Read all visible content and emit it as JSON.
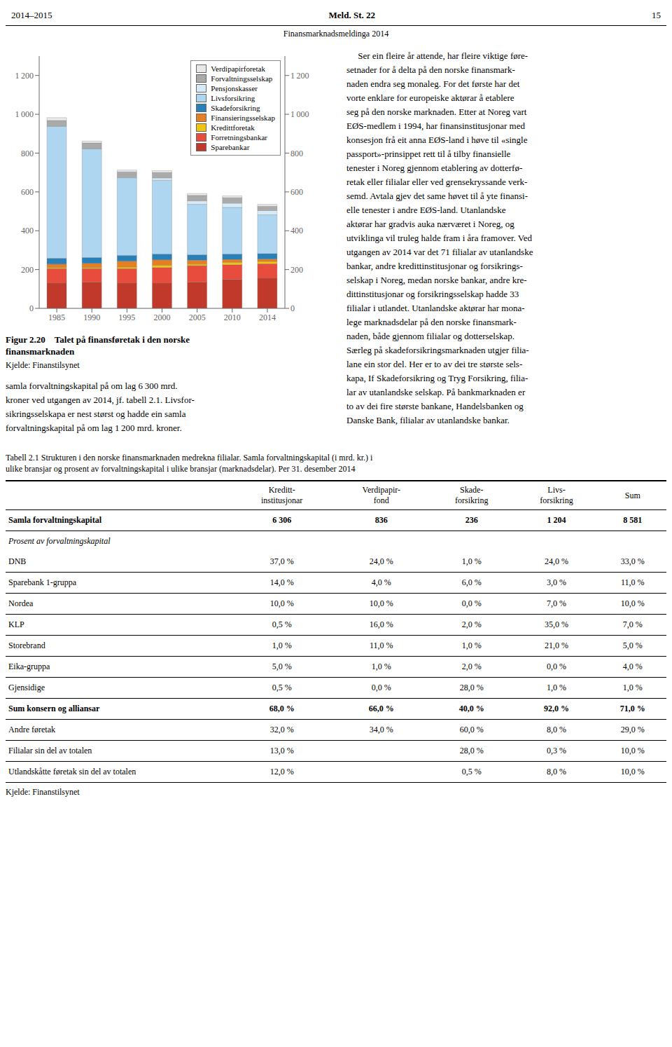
{
  "page_header": {
    "left": "2014–2015",
    "center": "Meld. St. 22",
    "right": "15"
  },
  "page_subheader": "Finansmarknadsmeldinga 2014",
  "chart_data": {
    "type": "bar",
    "stacked": true,
    "categories": [
      1985,
      1990,
      1995,
      2000,
      2005,
      2010,
      2014
    ],
    "series": [
      {
        "name": "Sparebankar",
        "color": "#c0392b",
        "values": [
          130,
          135,
          130,
          130,
          135,
          150,
          155
        ]
      },
      {
        "name": "Forretningsbankar",
        "color": "#e74c3c",
        "values": [
          75,
          70,
          75,
          80,
          85,
          75,
          75
        ]
      },
      {
        "name": "Kredittforetak",
        "color": "#f1c40f",
        "values": [
          5,
          5,
          8,
          12,
          8,
          12,
          12
        ]
      },
      {
        "name": "Finansieringsselskap",
        "color": "#e67e22",
        "values": [
          18,
          22,
          30,
          28,
          20,
          15,
          12
        ]
      },
      {
        "name": "Skadeforsikring",
        "color": "#2980b9",
        "values": [
          30,
          30,
          30,
          30,
          28,
          28,
          28
        ]
      },
      {
        "name": "Livsforsikring",
        "color": "#aed6f1",
        "values": [
          680,
          560,
          400,
          380,
          260,
          240,
          200
        ]
      },
      {
        "name": "Pensjonskasser",
        "color": "#d6eaf8",
        "values": [
          0,
          0,
          0,
          12,
          18,
          22,
          22
        ]
      },
      {
        "name": "Forvaltningsselskap",
        "color": "#aaaaaa",
        "values": [
          30,
          30,
          30,
          28,
          28,
          28,
          22
        ]
      },
      {
        "name": "Verdipapirforetak",
        "color": "#e8e8e8",
        "values": [
          15,
          10,
          10,
          10,
          10,
          10,
          10
        ]
      }
    ],
    "ylim": [
      0,
      1300
    ],
    "yticks": [
      0,
      200,
      400,
      600,
      800,
      {
        "value": 1000,
        "label": "1 000"
      },
      {
        "value": 1200,
        "label": "1 200"
      }
    ],
    "y2lim": [
      0,
      1300
    ],
    "y2ticks": [
      0,
      200,
      400,
      600,
      800,
      {
        "value": 1000,
        "label": "1 000"
      },
      {
        "value": 1200,
        "label": "1 200"
      }
    ],
    "legend": "upper right",
    "grid": false
  },
  "chart_caption": [
    "Figur 2.20 Talet på finansføretak i den norske",
    "finansmarknaden"
  ],
  "chart_source": "Kjelde: Finanstilsynet",
  "body_text": [
    "samla forvaltningskapital på om lag 6 300 mrd.",
    "kroner ved utgangen av 2014, jf. tabell 2.1. Livsfor-",
    "sikringsselskapa er nest størst og hadde ein samla",
    "forvaltningskapital på om lag 1 200 mrd. kroner."
  ],
  "right_column_text": [
    "     Ser ein fleire år attende, har fleire viktige føre-",
    "setnader for å delta på den norske finansmark-",
    "naden endra seg monaleg. For det første har det",
    "vorte enklare for europeiske aktørar å etablere",
    "seg på den norske marknaden. Etter at Noreg vart",
    "EØS-medlem i 1994, har finansinstitusjonar med",
    "konsesjon frå eit anna EØS-land i høve til «single",
    "passport»-prinsippet rett til å tilby finansielle",
    "tenester i Noreg gjennom etablering av dotterfø-",
    "retak eller filialar eller ved grensekryssande verk-",
    "semd. Avtala gjev det same høvet til å yte finansi-",
    "elle tenester i andre EØS-land. Utanlandske",
    "aktørar har gradvis auka nærværet i Noreg, og",
    "utviklinga vil truleg halde fram i åra framover. Ved",
    "utgangen av 2014 var det 71 filialar av utanlandske",
    "bankar, andre kredittinstitusjonar og forsikrings-",
    "selskap i Noreg, medan norske bankar, andre kre-",
    "dittinstitusjonar og forsikringsselskap hadde 33",
    "filialar i utlandet. Utanlandske aktørar har mona-",
    "lege marknadsdelar på den norske finansmark-",
    "naden, både gjennom filialar og dotterselskap.",
    "Særleg på skadeforsikringsmarknaden utgjer filia-",
    "lane ein stor del. Her er to av dei tre største sels-",
    "kapa, If Skadeforsikring og Tryg Forsikring, filia-",
    "lar av utanlandske selskap. På bankmarknaden er",
    "to av dei fire største bankane, Handelsbanken og",
    "Danske Bank, filialar av utanlandske bankar."
  ],
  "table": {
    "title": [
      "Tabell 2.1 Strukturen i den norske finansmarknaden medrekna filialar. Samla forvaltningskapital (i mrd. kr.) i",
      "ulike bransjar og prosent av forvaltningskapital i ulike bransjar (marknadsdelar). Per 31. desember 2014"
    ],
    "columns": [
      null,
      "Kreditt-\ninstitusjonar",
      "Verdipapir-\nfond",
      "Skade-\nforsikring",
      "Livs-\nforsikring",
      "Sum"
    ],
    "rows": [
      [
        "Samla forvaltningskapital",
        "6 306",
        "836",
        "236",
        "1 204",
        "8 581"
      ],
      [
        "Prosent av forvaltningskapital",
        null,
        null,
        null,
        null,
        null
      ],
      [
        "DNB",
        "37,0 %",
        "24,0 %",
        "1,0 %",
        "24,0 %",
        "33,0 %"
      ],
      [
        "Sparebank 1-gruppa",
        "14,0 %",
        "4,0 %",
        "6,0 %",
        "3,0 %",
        "11,0 %"
      ],
      [
        "Nordea",
        "10,0 %",
        "10,0 %",
        "0,0 %",
        "7,0 %",
        "10,0 %"
      ],
      [
        "KLP",
        "0,5 %",
        "16,0 %",
        "2,0 %",
        "35,0 %",
        "7,0 %"
      ],
      [
        "Storebrand",
        "1,0 %",
        "11,0 %",
        "1,0 %",
        "21,0 %",
        "5,0 %"
      ],
      [
        "Eika-gruppa",
        "5,0 %",
        "1,0 %",
        "2,0 %",
        "0,0 %",
        "4,0 %"
      ],
      [
        "Gjensidige",
        "0,5 %",
        "0,0 %",
        "28,0 %",
        "1,0 %",
        "1,0 %"
      ],
      [
        "Sum konsern og alliansar",
        "68,0 %",
        "66,0 %",
        "40,0 %",
        "92,0 %",
        "71,0 %"
      ],
      [
        "Andre føretak",
        "32,0 %",
        "34,0 %",
        "60,0 %",
        "8,0 %",
        "29,0 %"
      ],
      [
        "Filialar sin del av totalen",
        "13,0 %",
        null,
        "28,0 %",
        "0,3 %",
        "10,0 %"
      ],
      [
        "Utlandskåtte føretak sin del av totalen",
        "12,0 %",
        null,
        "0,5 %",
        "8,0 %",
        "10,0 %"
      ]
    ],
    "source": "Kjelde: Finanstilsynet"
  }
}
